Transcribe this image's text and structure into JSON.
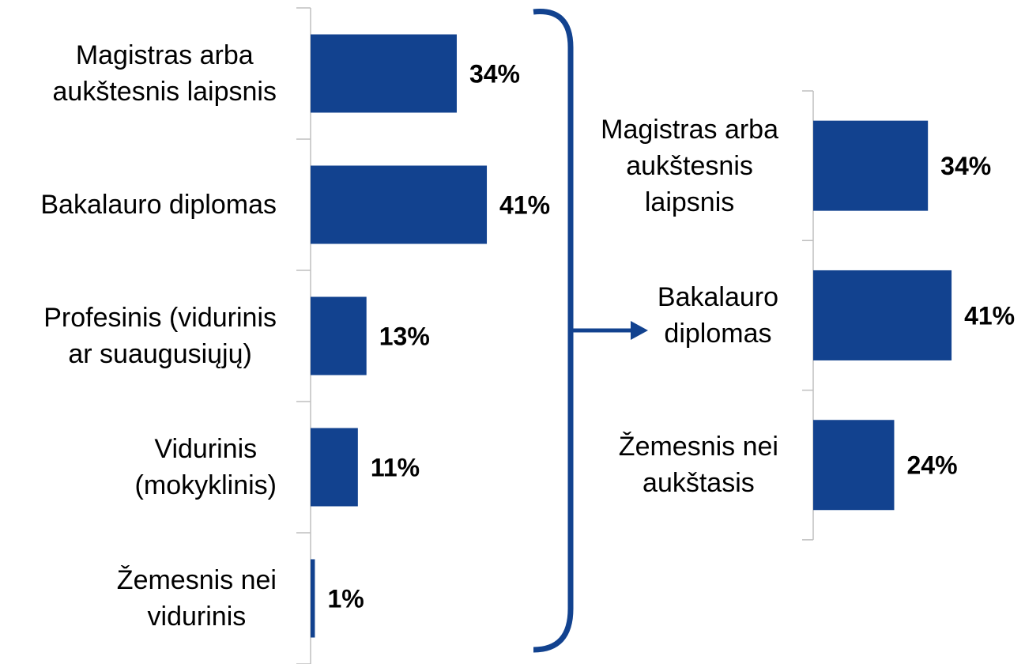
{
  "chart_data": [
    {
      "type": "bar",
      "orientation": "horizontal",
      "color": "#12428f",
      "categories": [
        "Magistras arba\naukštesnis laipsnis",
        "Bakalauro diplomas",
        "Profesinis (vidurinis\nar suaugusiųjų)",
        "Vidurinis\n(mokyklinis)",
        "Žemesnis nei\nvidurinis"
      ],
      "values": [
        34,
        41,
        13,
        11,
        1
      ],
      "value_labels": [
        "34%",
        "41%",
        "13%",
        "11%",
        "1%"
      ]
    },
    {
      "type": "bar",
      "orientation": "horizontal",
      "color": "#12428f",
      "categories": [
        "Magistras arba\naukštesnis\nlaipsnis",
        "Bakalauro\ndiplomas",
        "Žemesnis nei\naukštasis"
      ],
      "values": [
        34,
        41,
        24
      ],
      "value_labels": [
        "34%",
        "41%",
        "24%"
      ]
    }
  ]
}
